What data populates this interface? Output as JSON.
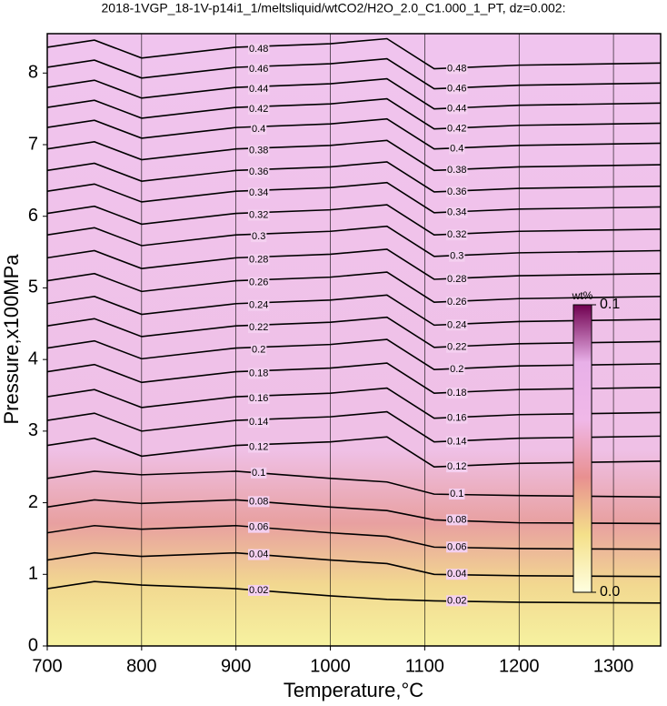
{
  "chart_data": {
    "type": "contour",
    "title": "2018-1VGP_18-1V-p14i1_1/meltsliquid/wtCO2/H2O_2.0_C1.000_1_PT, dz=0.002:",
    "x_label": "Temperature,°C",
    "y_label": "Pressure,x100MPa",
    "xlim": [
      700,
      1350
    ],
    "ylim": [
      0,
      8.55
    ],
    "xticks": [
      700,
      800,
      900,
      1000,
      1100,
      1200,
      1300
    ],
    "yticks": [
      0,
      1,
      2,
      3,
      4,
      5,
      6,
      7,
      8
    ],
    "grid": true,
    "line_color": "#000000",
    "colorbar": {
      "title": "wt%",
      "lim": [
        0,
        0.1
      ],
      "ticks": [
        {
          "value": 0,
          "label": "0.0"
        },
        0.1
      ],
      "colors": [
        "#ffffe0",
        "#f4e08a",
        "#e89090",
        "#f0b8e8",
        "#e8b0e8",
        "#700050"
      ]
    },
    "x": [
      700,
      750,
      800,
      900,
      1000,
      1060,
      1110,
      1200,
      1350
    ],
    "contours": [
      {
        "level": 0.02,
        "y": [
          0.8,
          0.9,
          0.85,
          0.8,
          0.7,
          0.65,
          0.63,
          0.61,
          0.6
        ]
      },
      {
        "level": 0.04,
        "y": [
          1.2,
          1.3,
          1.25,
          1.3,
          1.2,
          1.15,
          1.0,
          0.98,
          0.97
        ]
      },
      {
        "level": 0.06,
        "y": [
          1.58,
          1.68,
          1.63,
          1.68,
          1.58,
          1.53,
          1.38,
          1.36,
          1.35
        ]
      },
      {
        "level": 0.08,
        "y": [
          1.94,
          2.04,
          1.99,
          2.04,
          1.94,
          1.89,
          1.76,
          1.72,
          1.71
        ]
      },
      {
        "level": 0.1,
        "y": [
          2.34,
          2.44,
          2.39,
          2.44,
          2.34,
          2.29,
          2.12,
          2.1,
          2.08
        ]
      },
      {
        "level": 0.12,
        "y": [
          2.8,
          2.9,
          2.65,
          2.8,
          2.85,
          2.92,
          2.5,
          2.55,
          2.58
        ]
      },
      {
        "level": 0.14,
        "y": [
          3.15,
          3.25,
          3.0,
          3.15,
          3.2,
          3.27,
          2.85,
          2.9,
          2.93
        ]
      },
      {
        "level": 0.16,
        "y": [
          3.48,
          3.58,
          3.33,
          3.48,
          3.53,
          3.6,
          3.18,
          3.23,
          3.26
        ]
      },
      {
        "level": 0.18,
        "y": [
          3.83,
          3.93,
          3.68,
          3.83,
          3.88,
          3.95,
          3.53,
          3.58,
          3.61
        ]
      },
      {
        "level": 0.2,
        "y": [
          4.16,
          4.26,
          4.01,
          4.16,
          4.21,
          4.28,
          3.86,
          3.91,
          3.94
        ]
      },
      {
        "level": 0.22,
        "y": [
          4.47,
          4.57,
          4.32,
          4.47,
          4.52,
          4.59,
          4.17,
          4.22,
          4.25
        ]
      },
      {
        "level": 0.24,
        "y": [
          4.78,
          4.88,
          4.63,
          4.78,
          4.83,
          4.9,
          4.48,
          4.53,
          4.56
        ]
      },
      {
        "level": 0.26,
        "y": [
          5.1,
          5.2,
          4.95,
          5.1,
          5.15,
          5.22,
          4.8,
          4.85,
          4.88
        ]
      },
      {
        "level": 0.28,
        "y": [
          5.42,
          5.52,
          5.27,
          5.42,
          5.47,
          5.54,
          5.12,
          5.17,
          5.2
        ]
      },
      {
        "level": 0.3,
        "y": [
          5.74,
          5.84,
          5.59,
          5.74,
          5.79,
          5.86,
          5.44,
          5.49,
          5.52
        ]
      },
      {
        "level": 0.32,
        "y": [
          6.04,
          6.14,
          5.89,
          6.04,
          6.09,
          6.16,
          5.74,
          5.79,
          5.82
        ]
      },
      {
        "level": 0.34,
        "y": [
          6.35,
          6.45,
          6.2,
          6.35,
          6.4,
          6.47,
          6.05,
          6.1,
          6.13
        ]
      },
      {
        "level": 0.36,
        "y": [
          6.64,
          6.74,
          6.49,
          6.64,
          6.69,
          6.76,
          6.34,
          6.39,
          6.42
        ]
      },
      {
        "level": 0.38,
        "y": [
          6.94,
          7.04,
          6.79,
          6.94,
          6.99,
          7.06,
          6.64,
          6.69,
          6.72
        ]
      },
      {
        "level": 0.4,
        "y": [
          7.24,
          7.34,
          7.09,
          7.24,
          7.29,
          7.36,
          6.94,
          6.99,
          7.02
        ]
      },
      {
        "level": 0.42,
        "y": [
          7.52,
          7.62,
          7.37,
          7.52,
          7.57,
          7.64,
          7.22,
          7.27,
          7.3
        ]
      },
      {
        "level": 0.44,
        "y": [
          7.8,
          7.9,
          7.65,
          7.8,
          7.85,
          7.92,
          7.5,
          7.55,
          7.58
        ]
      },
      {
        "level": 0.46,
        "y": [
          8.08,
          8.18,
          7.93,
          8.08,
          8.13,
          8.2,
          7.78,
          7.83,
          7.86
        ]
      },
      {
        "level": 0.48,
        "y": [
          8.36,
          8.46,
          8.21,
          8.36,
          8.41,
          8.48,
          8.06,
          8.11,
          8.14
        ]
      }
    ]
  }
}
